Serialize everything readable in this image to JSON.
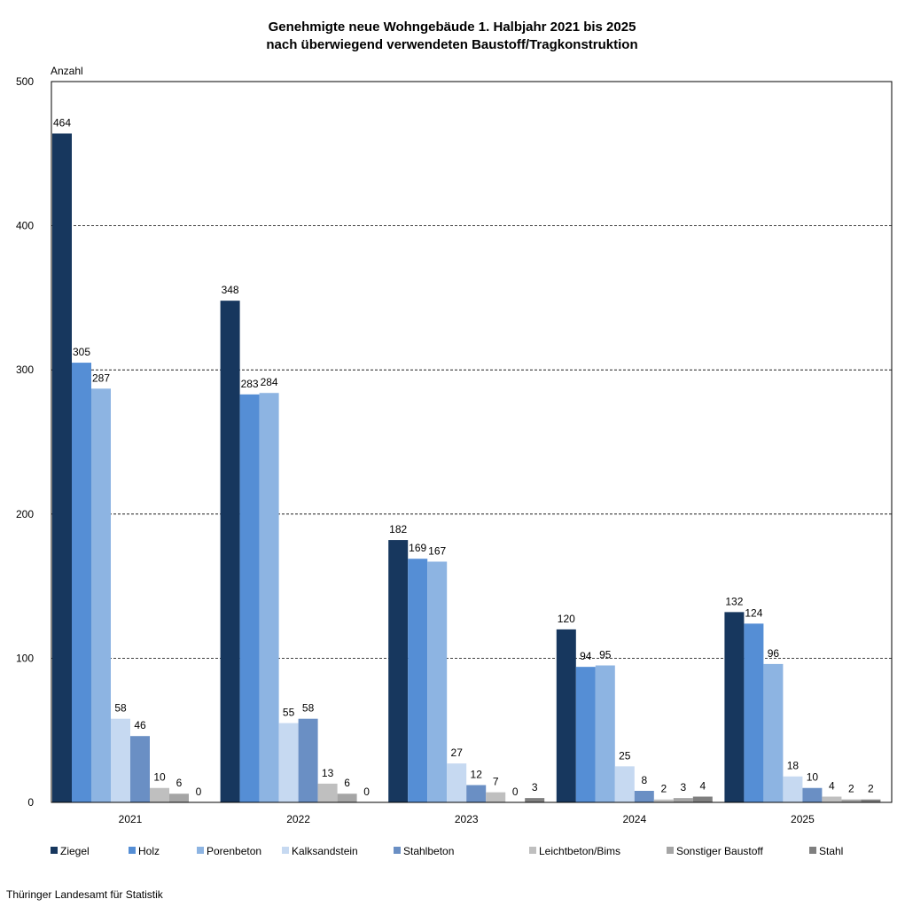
{
  "chart_data": {
    "type": "bar",
    "title": [
      "Genehmigte neue Wohngebäude 1. Halbjahr 2021 bis 2025",
      "nach überwiegend verwendeten Baustoff/Tragkonstruktion"
    ],
    "ylabel": "Anzahl",
    "xlabel": "",
    "ylim": [
      0,
      500
    ],
    "yticks": [
      0,
      100,
      200,
      300,
      400,
      500
    ],
    "grid": true,
    "legend_position": "bottom",
    "categories": [
      "2021",
      "2022",
      "2023",
      "2024",
      "2025"
    ],
    "series": [
      {
        "name": "Ziegel",
        "color": "#17375e",
        "values": [
          464,
          348,
          182,
          120,
          132
        ]
      },
      {
        "name": "Holz",
        "color": "#558ed5",
        "values": [
          305,
          283,
          169,
          94,
          124
        ]
      },
      {
        "name": "Porenbeton",
        "color": "#8db4e2",
        "values": [
          287,
          284,
          167,
          95,
          96
        ]
      },
      {
        "name": "Kalksandstein",
        "color": "#c6d9f1",
        "values": [
          58,
          55,
          27,
          25,
          18
        ]
      },
      {
        "name": "Stahlbeton",
        "color": "#6a8fc4",
        "values": [
          46,
          58,
          12,
          8,
          10
        ]
      },
      {
        "name": "Leichtbeton/Bims",
        "color": "#bfbfbf",
        "values": [
          10,
          13,
          7,
          2,
          4
        ]
      },
      {
        "name": "Sonstiger Baustoff",
        "color": "#a5a5a5",
        "values": [
          6,
          6,
          0,
          3,
          2
        ]
      },
      {
        "name": "Stahl",
        "color": "#7f7f7f",
        "values": [
          0,
          0,
          3,
          4,
          2
        ]
      }
    ]
  },
  "source": "Thüringer Landesamt für Statistik"
}
